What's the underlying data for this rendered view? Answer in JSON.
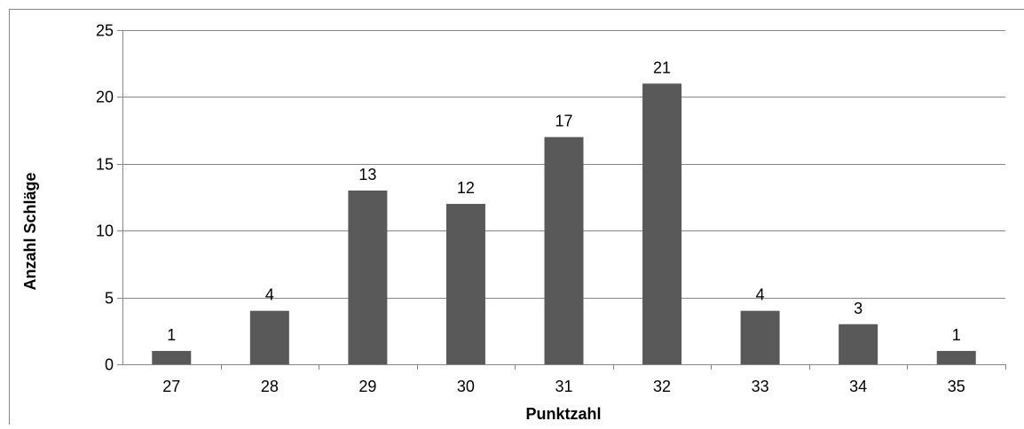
{
  "chart_data": {
    "type": "bar",
    "title": "",
    "xlabel": "Punktzahl",
    "ylabel": "Anzahl Schläge",
    "categories": [
      "27",
      "28",
      "29",
      "30",
      "31",
      "32",
      "33",
      "34",
      "35"
    ],
    "values": [
      1,
      4,
      13,
      12,
      17,
      21,
      4,
      3,
      1
    ],
    "ylim": [
      0,
      25
    ],
    "yticks": [
      "0",
      "5",
      "10",
      "15",
      "20",
      "25"
    ],
    "grid": "horizontal",
    "legend": "none",
    "data_labels": [
      "1",
      "4",
      "13",
      "12",
      "17",
      "21",
      "4",
      "3",
      "1"
    ],
    "colors": {
      "bar": "#595959",
      "grid": "#868686",
      "axis": "#868686",
      "frame": "#868686"
    }
  }
}
